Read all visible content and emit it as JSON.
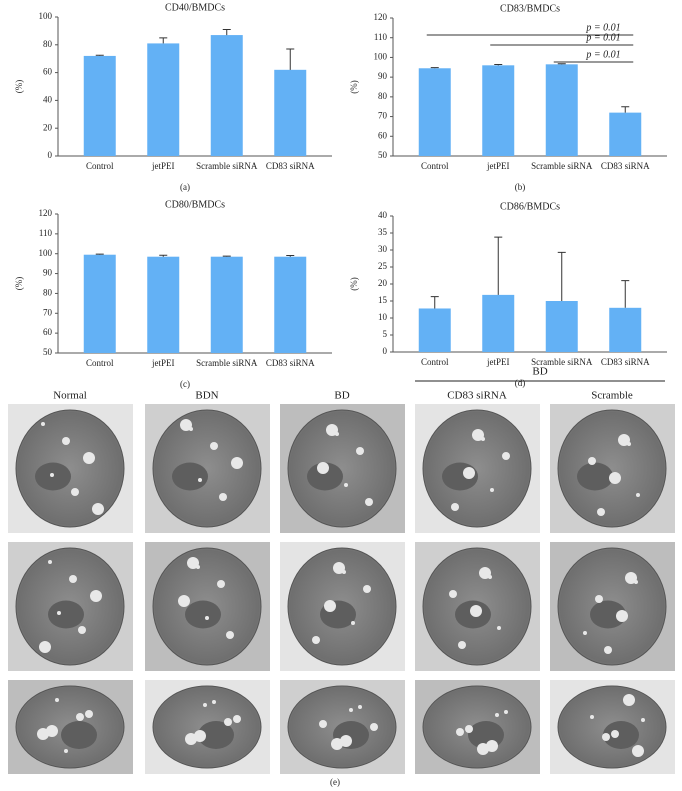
{
  "chart_data": [
    {
      "type": "bar",
      "title": "CD40/BMDCs",
      "ylabel": "(%)",
      "panel_label": "(a)",
      "categories": [
        "Control",
        "jetPEI",
        "Scramble siRNA",
        "CD83 siRNA"
      ],
      "values": [
        72,
        81,
        87,
        62
      ],
      "errors": [
        0.5,
        4,
        4,
        15
      ],
      "color": "#63b1f5",
      "ylim": [
        0,
        100
      ],
      "yticks": [
        0,
        20,
        40,
        60,
        80,
        100
      ]
    },
    {
      "type": "bar",
      "title": "CD83/BMDCs",
      "ylabel": "(%)",
      "panel_label": "(b)",
      "categories": [
        "Control",
        "jetPEI",
        "Scramble siRNA",
        "CD83 siRNA"
      ],
      "values": [
        94.5,
        96,
        96.5,
        72
      ],
      "errors": [
        0.3,
        0.4,
        0.3,
        3
      ],
      "color": "#63b1f5",
      "ylim": [
        50,
        120
      ],
      "yticks": [
        50,
        60,
        70,
        80,
        90,
        100,
        110,
        120
      ],
      "annotations": [
        "p = 0.01",
        "p = 0.01",
        "p = 0.01"
      ]
    },
    {
      "type": "bar",
      "title": "CD80/BMDCs",
      "ylabel": "(%)",
      "panel_label": "(c)",
      "categories": [
        "Control",
        "jetPEI",
        "Scramble siRNA",
        "CD83 siRNA"
      ],
      "values": [
        99.5,
        98.5,
        98.5,
        98.5
      ],
      "errors": [
        0.3,
        0.7,
        0.3,
        0.6
      ],
      "color": "#63b1f5",
      "ylim": [
        50,
        120
      ],
      "yticks": [
        50,
        60,
        70,
        80,
        90,
        100,
        110,
        120
      ]
    },
    {
      "type": "bar",
      "title": "CD86/BMDCs",
      "ylabel": "(%)",
      "panel_label": "(d)",
      "categories": [
        "Control",
        "jetPEI",
        "Scramble siRNA",
        "CD83 siRNA"
      ],
      "values": [
        12.8,
        16.8,
        15,
        13
      ],
      "errors": [
        3.5,
        17,
        14.3,
        8
      ],
      "color": "#63b1f5",
      "ylim": [
        0,
        40
      ],
      "yticks": [
        0,
        5,
        10,
        15,
        20,
        25,
        30,
        35,
        40
      ]
    }
  ],
  "figure_e": {
    "group_label": "BD",
    "columns": [
      "Normal",
      "BDN",
      "BD",
      "CD83 siRNA",
      "Scramble"
    ],
    "panel_label": "(e)"
  }
}
